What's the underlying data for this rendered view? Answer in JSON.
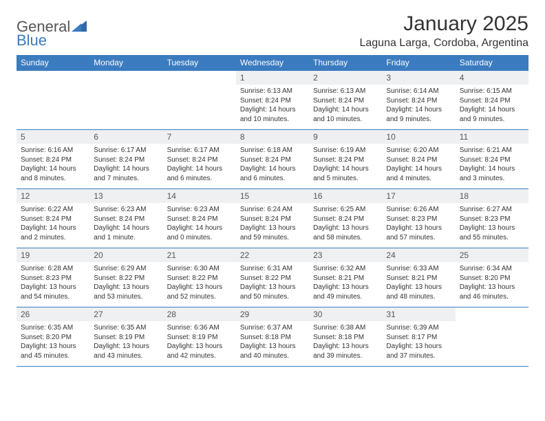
{
  "brand": {
    "part1": "General",
    "part2": "Blue"
  },
  "title": "January 2025",
  "location": "Laguna Larga, Cordoba, Argentina",
  "theme": {
    "header_bg": "#3b7bbf",
    "header_fg": "#ffffff",
    "daynum_bg": "#eef0f2",
    "border": "#3b7bbf",
    "text": "#333333",
    "page_bg": "#ffffff",
    "title_fontsize": 30,
    "location_fontsize": 16,
    "th_fontsize": 12,
    "cell_fontsize": 10
  },
  "weekdays": [
    "Sunday",
    "Monday",
    "Tuesday",
    "Wednesday",
    "Thursday",
    "Friday",
    "Saturday"
  ],
  "weeks": [
    [
      null,
      null,
      null,
      {
        "n": "1",
        "sr": "Sunrise: 6:13 AM",
        "ss": "Sunset: 8:24 PM",
        "dl": "Daylight: 14 hours and 10 minutes."
      },
      {
        "n": "2",
        "sr": "Sunrise: 6:13 AM",
        "ss": "Sunset: 8:24 PM",
        "dl": "Daylight: 14 hours and 10 minutes."
      },
      {
        "n": "3",
        "sr": "Sunrise: 6:14 AM",
        "ss": "Sunset: 8:24 PM",
        "dl": "Daylight: 14 hours and 9 minutes."
      },
      {
        "n": "4",
        "sr": "Sunrise: 6:15 AM",
        "ss": "Sunset: 8:24 PM",
        "dl": "Daylight: 14 hours and 9 minutes."
      }
    ],
    [
      {
        "n": "5",
        "sr": "Sunrise: 6:16 AM",
        "ss": "Sunset: 8:24 PM",
        "dl": "Daylight: 14 hours and 8 minutes."
      },
      {
        "n": "6",
        "sr": "Sunrise: 6:17 AM",
        "ss": "Sunset: 8:24 PM",
        "dl": "Daylight: 14 hours and 7 minutes."
      },
      {
        "n": "7",
        "sr": "Sunrise: 6:17 AM",
        "ss": "Sunset: 8:24 PM",
        "dl": "Daylight: 14 hours and 6 minutes."
      },
      {
        "n": "8",
        "sr": "Sunrise: 6:18 AM",
        "ss": "Sunset: 8:24 PM",
        "dl": "Daylight: 14 hours and 6 minutes."
      },
      {
        "n": "9",
        "sr": "Sunrise: 6:19 AM",
        "ss": "Sunset: 8:24 PM",
        "dl": "Daylight: 14 hours and 5 minutes."
      },
      {
        "n": "10",
        "sr": "Sunrise: 6:20 AM",
        "ss": "Sunset: 8:24 PM",
        "dl": "Daylight: 14 hours and 4 minutes."
      },
      {
        "n": "11",
        "sr": "Sunrise: 6:21 AM",
        "ss": "Sunset: 8:24 PM",
        "dl": "Daylight: 14 hours and 3 minutes."
      }
    ],
    [
      {
        "n": "12",
        "sr": "Sunrise: 6:22 AM",
        "ss": "Sunset: 8:24 PM",
        "dl": "Daylight: 14 hours and 2 minutes."
      },
      {
        "n": "13",
        "sr": "Sunrise: 6:23 AM",
        "ss": "Sunset: 8:24 PM",
        "dl": "Daylight: 14 hours and 1 minute."
      },
      {
        "n": "14",
        "sr": "Sunrise: 6:23 AM",
        "ss": "Sunset: 8:24 PM",
        "dl": "Daylight: 14 hours and 0 minutes."
      },
      {
        "n": "15",
        "sr": "Sunrise: 6:24 AM",
        "ss": "Sunset: 8:24 PM",
        "dl": "Daylight: 13 hours and 59 minutes."
      },
      {
        "n": "16",
        "sr": "Sunrise: 6:25 AM",
        "ss": "Sunset: 8:24 PM",
        "dl": "Daylight: 13 hours and 58 minutes."
      },
      {
        "n": "17",
        "sr": "Sunrise: 6:26 AM",
        "ss": "Sunset: 8:23 PM",
        "dl": "Daylight: 13 hours and 57 minutes."
      },
      {
        "n": "18",
        "sr": "Sunrise: 6:27 AM",
        "ss": "Sunset: 8:23 PM",
        "dl": "Daylight: 13 hours and 55 minutes."
      }
    ],
    [
      {
        "n": "19",
        "sr": "Sunrise: 6:28 AM",
        "ss": "Sunset: 8:23 PM",
        "dl": "Daylight: 13 hours and 54 minutes."
      },
      {
        "n": "20",
        "sr": "Sunrise: 6:29 AM",
        "ss": "Sunset: 8:22 PM",
        "dl": "Daylight: 13 hours and 53 minutes."
      },
      {
        "n": "21",
        "sr": "Sunrise: 6:30 AM",
        "ss": "Sunset: 8:22 PM",
        "dl": "Daylight: 13 hours and 52 minutes."
      },
      {
        "n": "22",
        "sr": "Sunrise: 6:31 AM",
        "ss": "Sunset: 8:22 PM",
        "dl": "Daylight: 13 hours and 50 minutes."
      },
      {
        "n": "23",
        "sr": "Sunrise: 6:32 AM",
        "ss": "Sunset: 8:21 PM",
        "dl": "Daylight: 13 hours and 49 minutes."
      },
      {
        "n": "24",
        "sr": "Sunrise: 6:33 AM",
        "ss": "Sunset: 8:21 PM",
        "dl": "Daylight: 13 hours and 48 minutes."
      },
      {
        "n": "25",
        "sr": "Sunrise: 6:34 AM",
        "ss": "Sunset: 8:20 PM",
        "dl": "Daylight: 13 hours and 46 minutes."
      }
    ],
    [
      {
        "n": "26",
        "sr": "Sunrise: 6:35 AM",
        "ss": "Sunset: 8:20 PM",
        "dl": "Daylight: 13 hours and 45 minutes."
      },
      {
        "n": "27",
        "sr": "Sunrise: 6:35 AM",
        "ss": "Sunset: 8:19 PM",
        "dl": "Daylight: 13 hours and 43 minutes."
      },
      {
        "n": "28",
        "sr": "Sunrise: 6:36 AM",
        "ss": "Sunset: 8:19 PM",
        "dl": "Daylight: 13 hours and 42 minutes."
      },
      {
        "n": "29",
        "sr": "Sunrise: 6:37 AM",
        "ss": "Sunset: 8:18 PM",
        "dl": "Daylight: 13 hours and 40 minutes."
      },
      {
        "n": "30",
        "sr": "Sunrise: 6:38 AM",
        "ss": "Sunset: 8:18 PM",
        "dl": "Daylight: 13 hours and 39 minutes."
      },
      {
        "n": "31",
        "sr": "Sunrise: 6:39 AM",
        "ss": "Sunset: 8:17 PM",
        "dl": "Daylight: 13 hours and 37 minutes."
      },
      null
    ]
  ]
}
